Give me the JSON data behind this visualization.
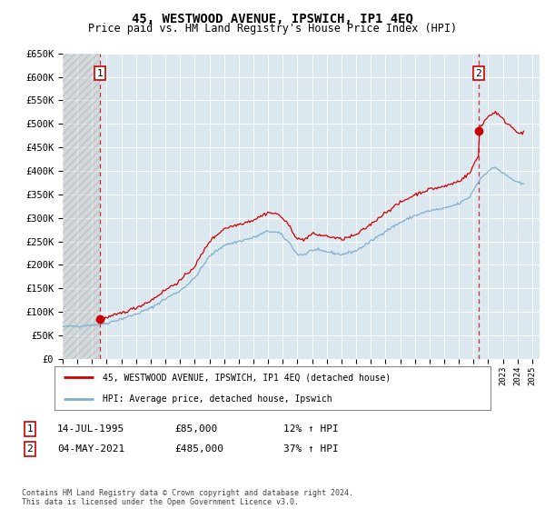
{
  "title": "45, WESTWOOD AVENUE, IPSWICH, IP1 4EQ",
  "subtitle": "Price paid vs. HM Land Registry's House Price Index (HPI)",
  "ylim": [
    0,
    650000
  ],
  "yticks": [
    0,
    50000,
    100000,
    150000,
    200000,
    250000,
    300000,
    350000,
    400000,
    450000,
    500000,
    550000,
    600000,
    650000
  ],
  "ytick_labels": [
    "£0",
    "£50K",
    "£100K",
    "£150K",
    "£200K",
    "£250K",
    "£300K",
    "£350K",
    "£400K",
    "£450K",
    "£500K",
    "£550K",
    "£600K",
    "£650K"
  ],
  "xlim_start": 1993.0,
  "xlim_end": 2025.5,
  "hatch_end": 1995.55,
  "sale1_x": 1995.54,
  "sale1_y": 85000,
  "sale2_x": 2021.34,
  "sale2_y": 485000,
  "sale1_label": "1",
  "sale2_label": "2",
  "line_red_color": "#cc0000",
  "line_blue_color": "#7fafd0",
  "bg_plot_color": "#dce8f0",
  "grid_color": "#ffffff",
  "legend_line1": "45, WESTWOOD AVENUE, IPSWICH, IP1 4EQ (detached house)",
  "legend_line2": "HPI: Average price, detached house, Ipswich",
  "table_row1": [
    "1",
    "14-JUL-1995",
    "£85,000",
    "12% ↑ HPI"
  ],
  "table_row2": [
    "2",
    "04-MAY-2021",
    "£485,000",
    "37% ↑ HPI"
  ],
  "footnote": "Contains HM Land Registry data © Crown copyright and database right 2024.\nThis data is licensed under the Open Government Licence v3.0."
}
